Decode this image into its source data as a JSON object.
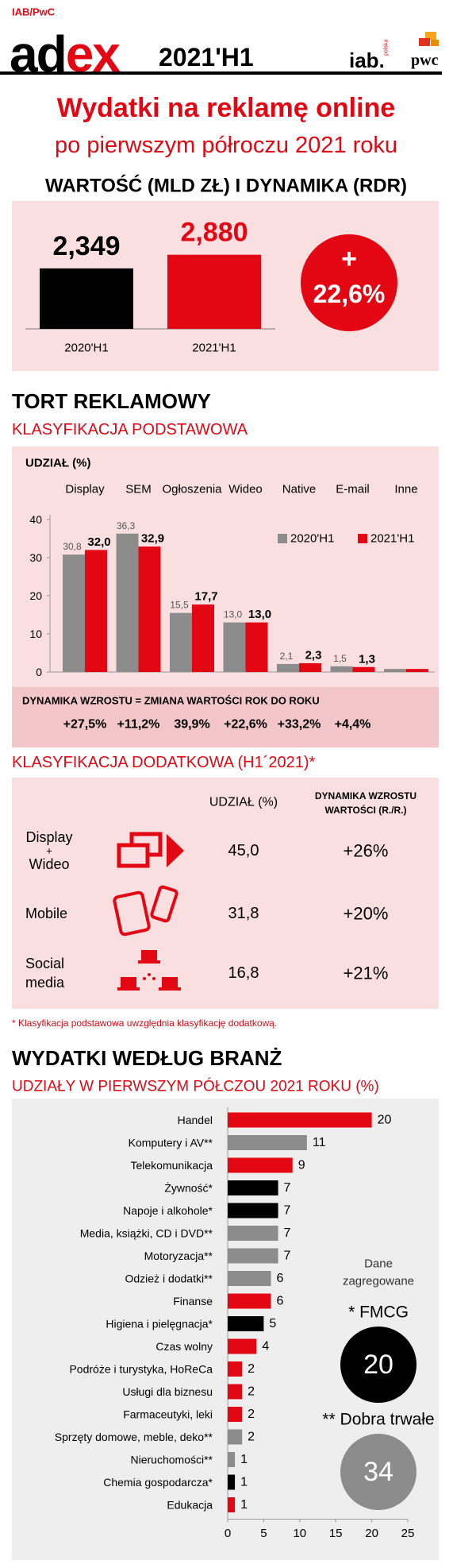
{
  "header": {
    "source": "IAB/PwC",
    "logo_ad": "ad",
    "logo_ex": "ex",
    "edition": "2021'H1",
    "iab": "iab.",
    "iab_sub": "polska",
    "pwc": "pwc"
  },
  "title": "Wydatki na reklamę online",
  "subtitle": "po pierwszym półroczu 2021 roku",
  "chart_data": [
    {
      "type": "bar",
      "title": "WARTOŚĆ (MLD ZŁ) I DYNAMIKA (RDR)",
      "categories": [
        "2020'H1",
        "2021'H1"
      ],
      "values": [
        2.349,
        2.88
      ],
      "value_labels": [
        "2,349",
        "2,880"
      ],
      "colors": [
        "#000000",
        "#e30613"
      ],
      "growth_sign": "+",
      "growth": "22,6%"
    },
    {
      "type": "grouped_bar",
      "section": "TORT REKLAMOWY",
      "title": "KLASYFIKACJA PODSTAWOWA",
      "ylabel": "UDZIAŁ (%)",
      "categories": [
        "Display",
        "SEM",
        "Ogłoszenia",
        "Wideo",
        "Native",
        "E-mail",
        "Inne"
      ],
      "series": [
        {
          "name": "2020'H1",
          "color": "#8c8c8c",
          "values": [
            30.8,
            36.3,
            15.5,
            13.0,
            2.1,
            1.5,
            0.8
          ],
          "value_labels": [
            "30,8",
            "36,3",
            "15,5",
            "13,0",
            "2,1",
            "1,5",
            null
          ]
        },
        {
          "name": "2021'H1",
          "color": "#e30613",
          "values": [
            32.0,
            32.9,
            17.7,
            13.0,
            2.3,
            1.3,
            0.8
          ],
          "value_labels": [
            "32,0",
            "32,9",
            "17,7",
            "13,0",
            "2,3",
            "1,3",
            null
          ]
        }
      ],
      "ylim": [
        0,
        40
      ],
      "yticks": [
        0,
        10,
        20,
        30,
        40
      ],
      "legend": "upper right",
      "growth_title": "DYNAMIKA WZROSTU = ZMIANA WARTOŚCI ROK DO ROKU",
      "growth_labels": [
        "+27,5%",
        "+11,2%",
        "39,9%",
        "+22,6%",
        "+33,2%",
        "+4,4%"
      ]
    },
    {
      "type": "hbar",
      "section": "WYDATKI WEDŁUG BRANŻ",
      "title": "UDZIAŁY W PIERWSZYM PÓŁCZOU 2021 ROKU (%)",
      "categories": [
        "Handel",
        "Komputery i AV**",
        "Telekomunikacja",
        "Żywność*",
        "Napoje i alkohole*",
        "Media, książki, CD i DVD**",
        "Motoryzacja**",
        "Odzież i dodatki**",
        "Finanse",
        "Higiena i pielęgnacja*",
        "Czas wolny",
        "Podróże i turystyka, HoReCa",
        "Usługi dla biznesu",
        "Farmaceutyki, leki",
        "Sprzęty domowe, meble, deko**",
        "Nieruchomości**",
        "Chemia gospodarcza*",
        "Edukacja"
      ],
      "values": [
        20,
        11,
        9,
        7,
        7,
        7,
        7,
        6,
        6,
        5,
        4,
        2,
        2,
        2,
        2,
        1,
        1,
        1
      ],
      "colors": [
        "#e30613",
        "#8c8c8c",
        "#e30613",
        "#000000",
        "#000000",
        "#8c8c8c",
        "#8c8c8c",
        "#8c8c8c",
        "#e30613",
        "#000000",
        "#e30613",
        "#e30613",
        "#e30613",
        "#e30613",
        "#8c8c8c",
        "#8c8c8c",
        "#000000",
        "#e30613"
      ],
      "xlim": [
        0,
        25
      ],
      "xticks": [
        0,
        5,
        10,
        15,
        20,
        25
      ],
      "aggregates": {
        "title": [
          "Dane",
          "zagregowane"
        ],
        "groups": [
          {
            "name": "* FMCG",
            "value": 20,
            "color": "#000000"
          },
          {
            "name": "** Dobra trwałe",
            "value": 34,
            "color": "#8c8c8c"
          }
        ]
      }
    }
  ],
  "additional": {
    "title": "KLASYFIKACJA DODATKOWA (H1´2021)*",
    "columns": [
      "UDZIAŁ (%)",
      [
        "DYNAMIKA WZROSTU",
        "WARTOŚCI (R./R.)"
      ]
    ],
    "rows": [
      {
        "label": [
          "Display",
          "+",
          "Wideo"
        ],
        "share": "45,0",
        "growth": "+26%"
      },
      {
        "label": [
          "Mobile"
        ],
        "share": "31,8",
        "growth": "+20%"
      },
      {
        "label": [
          "Social",
          "media"
        ],
        "share": "16,8",
        "growth": "+21%"
      }
    ],
    "footnote": "* Klasyfikacja podstawowa uwzględnia klasyfikację dodatkową."
  }
}
